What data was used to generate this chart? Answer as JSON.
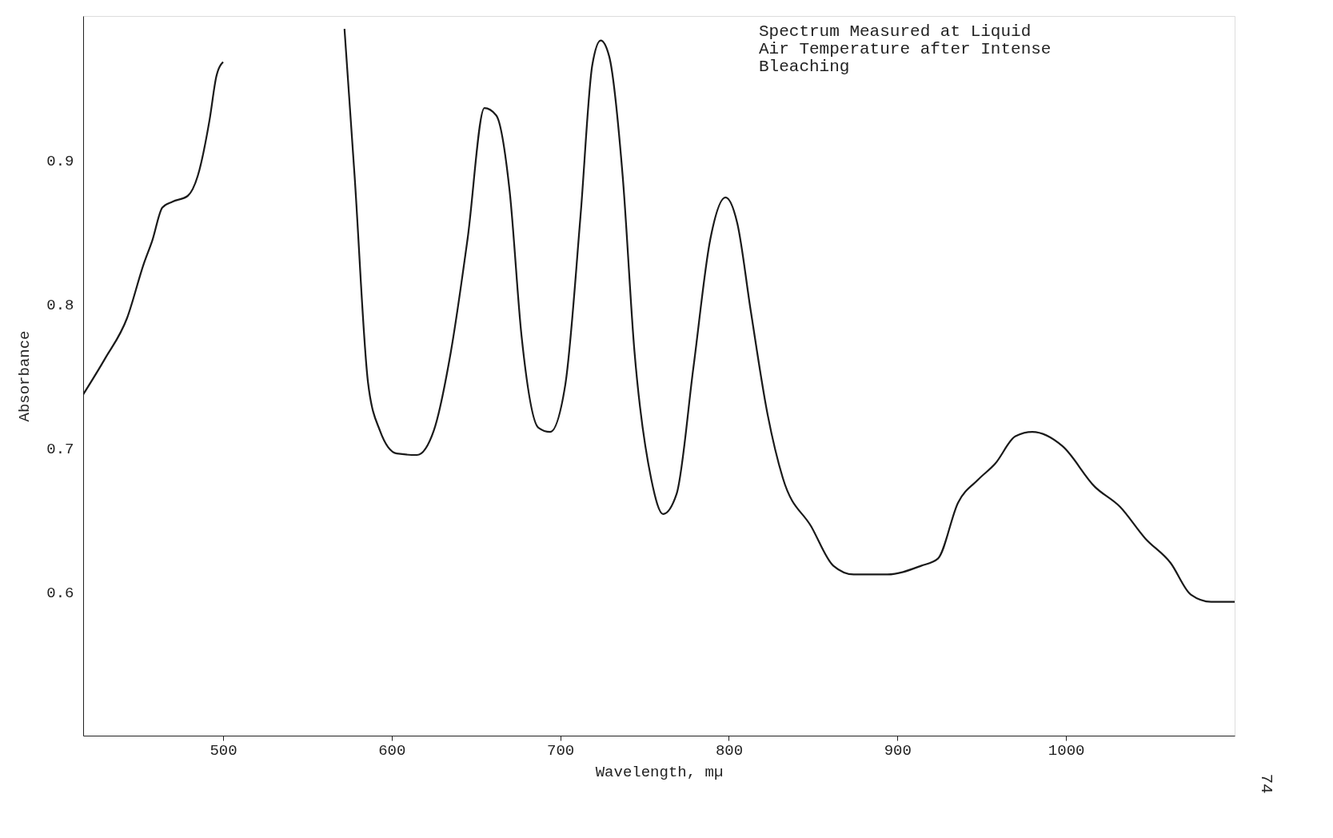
{
  "chart_data": {
    "type": "line",
    "xlabel": "Wavelength, mµ",
    "ylabel": "Absorbance",
    "annotations": [
      "Spectrum Measured at Liquid\nAir Temperature after Intense\nBleaching",
      "74"
    ],
    "x": [
      417,
      430,
      443,
      453,
      458,
      464,
      470,
      479,
      485,
      492,
      496,
      500,
      536,
      572,
      578,
      586,
      593,
      603,
      615,
      625,
      635,
      645,
      655,
      662,
      670,
      677,
      687,
      694,
      703,
      712,
      719,
      724,
      729,
      737,
      744,
      754,
      761,
      769,
      779,
      789,
      798,
      805,
      813,
      823,
      832,
      849,
      862,
      874,
      894,
      914,
      924,
      936,
      948,
      958,
      970,
      980,
      998,
      1017,
      1032,
      1047,
      1062,
      1074,
      1086,
      1100
    ],
    "series": [
      {
        "color": "#1a1a1a",
        "values": [
          0.737,
          0.762,
          0.79,
          0.828,
          0.844,
          0.867,
          0.871,
          0.875,
          0.889,
          0.928,
          0.958,
          0.968,
          null,
          0.991,
          0.889,
          0.745,
          0.712,
          0.696,
          0.695,
          0.712,
          0.766,
          0.845,
          0.936,
          0.931,
          0.878,
          0.778,
          0.714,
          0.711,
          0.744,
          0.861,
          0.966,
          0.983,
          0.972,
          0.889,
          0.767,
          0.678,
          0.654,
          0.668,
          0.756,
          0.845,
          0.874,
          0.856,
          0.795,
          0.723,
          0.679,
          0.645,
          0.618,
          0.612,
          0.612,
          0.618,
          0.623,
          0.662,
          0.678,
          0.689,
          0.708,
          0.711,
          0.701,
          0.673,
          0.659,
          0.637,
          0.62,
          0.598,
          0.593,
          0.593
        ]
      }
    ],
    "xlim": [
      417,
      1100
    ],
    "ylim": [
      0.5,
      1.0
    ],
    "xticks": [
      500,
      600,
      700,
      800,
      900,
      1000
    ],
    "yticks": [
      0.6,
      0.7,
      0.8,
      0.9
    ],
    "grid": false,
    "marker": "none",
    "line_style": "solid"
  }
}
